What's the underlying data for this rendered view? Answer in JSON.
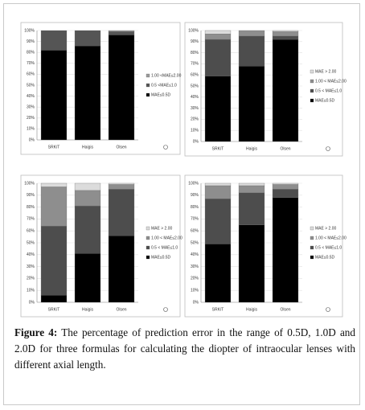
{
  "chart_data": [
    {
      "type": "bar",
      "stacked": true,
      "grid": true,
      "legend": "right",
      "categories": [
        "SRK/T",
        "Haigis",
        "Olsen"
      ],
      "ylim": [
        0,
        100
      ],
      "yticks": [
        {
          "value": 0,
          "label": "0%"
        },
        {
          "value": 10,
          "label": "10%"
        },
        {
          "value": 20,
          "label": "20%"
        },
        {
          "value": 30,
          "label": "30%"
        },
        {
          "value": 40,
          "label": "40%"
        },
        {
          "value": 50,
          "label": "50%"
        },
        {
          "value": 60,
          "label": "60%"
        },
        {
          "value": 70,
          "label": "70%"
        },
        {
          "value": 80,
          "label": "80%"
        },
        {
          "value": 90,
          "label": "90%"
        },
        {
          "value": 100,
          "label": "100%"
        }
      ],
      "series": [
        {
          "name": "MAE≤0.5D",
          "color": "#000000",
          "values": [
            82,
            86,
            96
          ]
        },
        {
          "name": "0.5 <MAE≤1.0",
          "color": "#555555",
          "values": [
            18,
            14,
            3
          ]
        },
        {
          "name": "1.00 <MAE≤2.00",
          "color": "#9a9a9a",
          "values": [
            0,
            0,
            1
          ]
        }
      ]
    },
    {
      "type": "bar",
      "stacked": true,
      "grid": true,
      "legend": "right",
      "categories": [
        "SRK/T",
        "Haigis",
        "Olsen"
      ],
      "ylim": [
        0,
        100
      ],
      "yticks": [
        {
          "value": 0,
          "label": "0%"
        },
        {
          "value": 10,
          "label": "10%"
        },
        {
          "value": 20,
          "label": "20%"
        },
        {
          "value": 30,
          "label": "30%"
        },
        {
          "value": 40,
          "label": "40%"
        },
        {
          "value": 50,
          "label": "50%"
        },
        {
          "value": 60,
          "label": "60%"
        },
        {
          "value": 70,
          "label": "70%"
        },
        {
          "value": 80,
          "label": "80%"
        },
        {
          "value": 90,
          "label": "90%"
        },
        {
          "value": 100,
          "label": "100%"
        }
      ],
      "series": [
        {
          "name": "MAE≤0.5D",
          "color": "#000000",
          "values": [
            59,
            68,
            92
          ]
        },
        {
          "name": "0.5 < MAE≤1.0",
          "color": "#4d4d4d",
          "values": [
            33,
            27,
            3
          ]
        },
        {
          "name": "1.00 < MAE≤2.00",
          "color": "#8e8e8e",
          "values": [
            5,
            5,
            4
          ]
        },
        {
          "name": "MAE > 2.00",
          "color": "#dcdcdc",
          "values": [
            3,
            0,
            1
          ]
        }
      ]
    },
    {
      "type": "bar",
      "stacked": true,
      "grid": true,
      "legend": "right",
      "categories": [
        "SRK/T",
        "Haigis",
        "Olsen"
      ],
      "ylim": [
        0,
        100
      ],
      "yticks": [
        {
          "value": 0,
          "label": "0%"
        },
        {
          "value": 10,
          "label": "10%"
        },
        {
          "value": 20,
          "label": "20%"
        },
        {
          "value": 30,
          "label": "30%"
        },
        {
          "value": 40,
          "label": "40%"
        },
        {
          "value": 50,
          "label": "50%"
        },
        {
          "value": 60,
          "label": "60%"
        },
        {
          "value": 70,
          "label": "70%"
        },
        {
          "value": 80,
          "label": "80%"
        },
        {
          "value": 90,
          "label": "90%"
        },
        {
          "value": 100,
          "label": "100%"
        }
      ],
      "series": [
        {
          "name": "MAE≤0.5D",
          "color": "#000000",
          "values": [
            6,
            41,
            56
          ]
        },
        {
          "name": "0.5 < MAE≤1.0",
          "color": "#4d4d4d",
          "values": [
            58,
            40,
            39
          ]
        },
        {
          "name": "1.00 < MAE≤2.00",
          "color": "#8e8e8e",
          "values": [
            33,
            13,
            4
          ]
        },
        {
          "name": "MAE > 2.00",
          "color": "#dcdcdc",
          "values": [
            3,
            6,
            1
          ]
        }
      ]
    },
    {
      "type": "bar",
      "stacked": true,
      "grid": true,
      "legend": "right",
      "categories": [
        "SRK/T",
        "Haigis",
        "Olsen"
      ],
      "ylim": [
        0,
        100
      ],
      "yticks": [
        {
          "value": 0,
          "label": "0%"
        },
        {
          "value": 10,
          "label": "10%"
        },
        {
          "value": 20,
          "label": "20%"
        },
        {
          "value": 30,
          "label": "30%"
        },
        {
          "value": 40,
          "label": "40%"
        },
        {
          "value": 50,
          "label": "50%"
        },
        {
          "value": 60,
          "label": "60%"
        },
        {
          "value": 70,
          "label": "70%"
        },
        {
          "value": 80,
          "label": "80%"
        },
        {
          "value": 90,
          "label": "90%"
        },
        {
          "value": 100,
          "label": "100%"
        }
      ],
      "series": [
        {
          "name": "MAE≤0.5D",
          "color": "#000000",
          "values": [
            49,
            65,
            88
          ]
        },
        {
          "name": "0.5 < MAE≤1.0",
          "color": "#4d4d4d",
          "values": [
            38,
            27,
            7
          ]
        },
        {
          "name": "1.00 < MAE≤2.00",
          "color": "#8e8e8e",
          "values": [
            11,
            6,
            4
          ]
        },
        {
          "name": "MAE > 2.00",
          "color": "#dcdcdc",
          "values": [
            2,
            2,
            1
          ]
        }
      ]
    }
  ],
  "caption": {
    "label": "Figure 4:",
    "text": "The percentage of prediction error in the range of 0.5D, 1.0D and 2.0D for three formulas for calculating the diopter of intraocular lenses with different axial length."
  }
}
